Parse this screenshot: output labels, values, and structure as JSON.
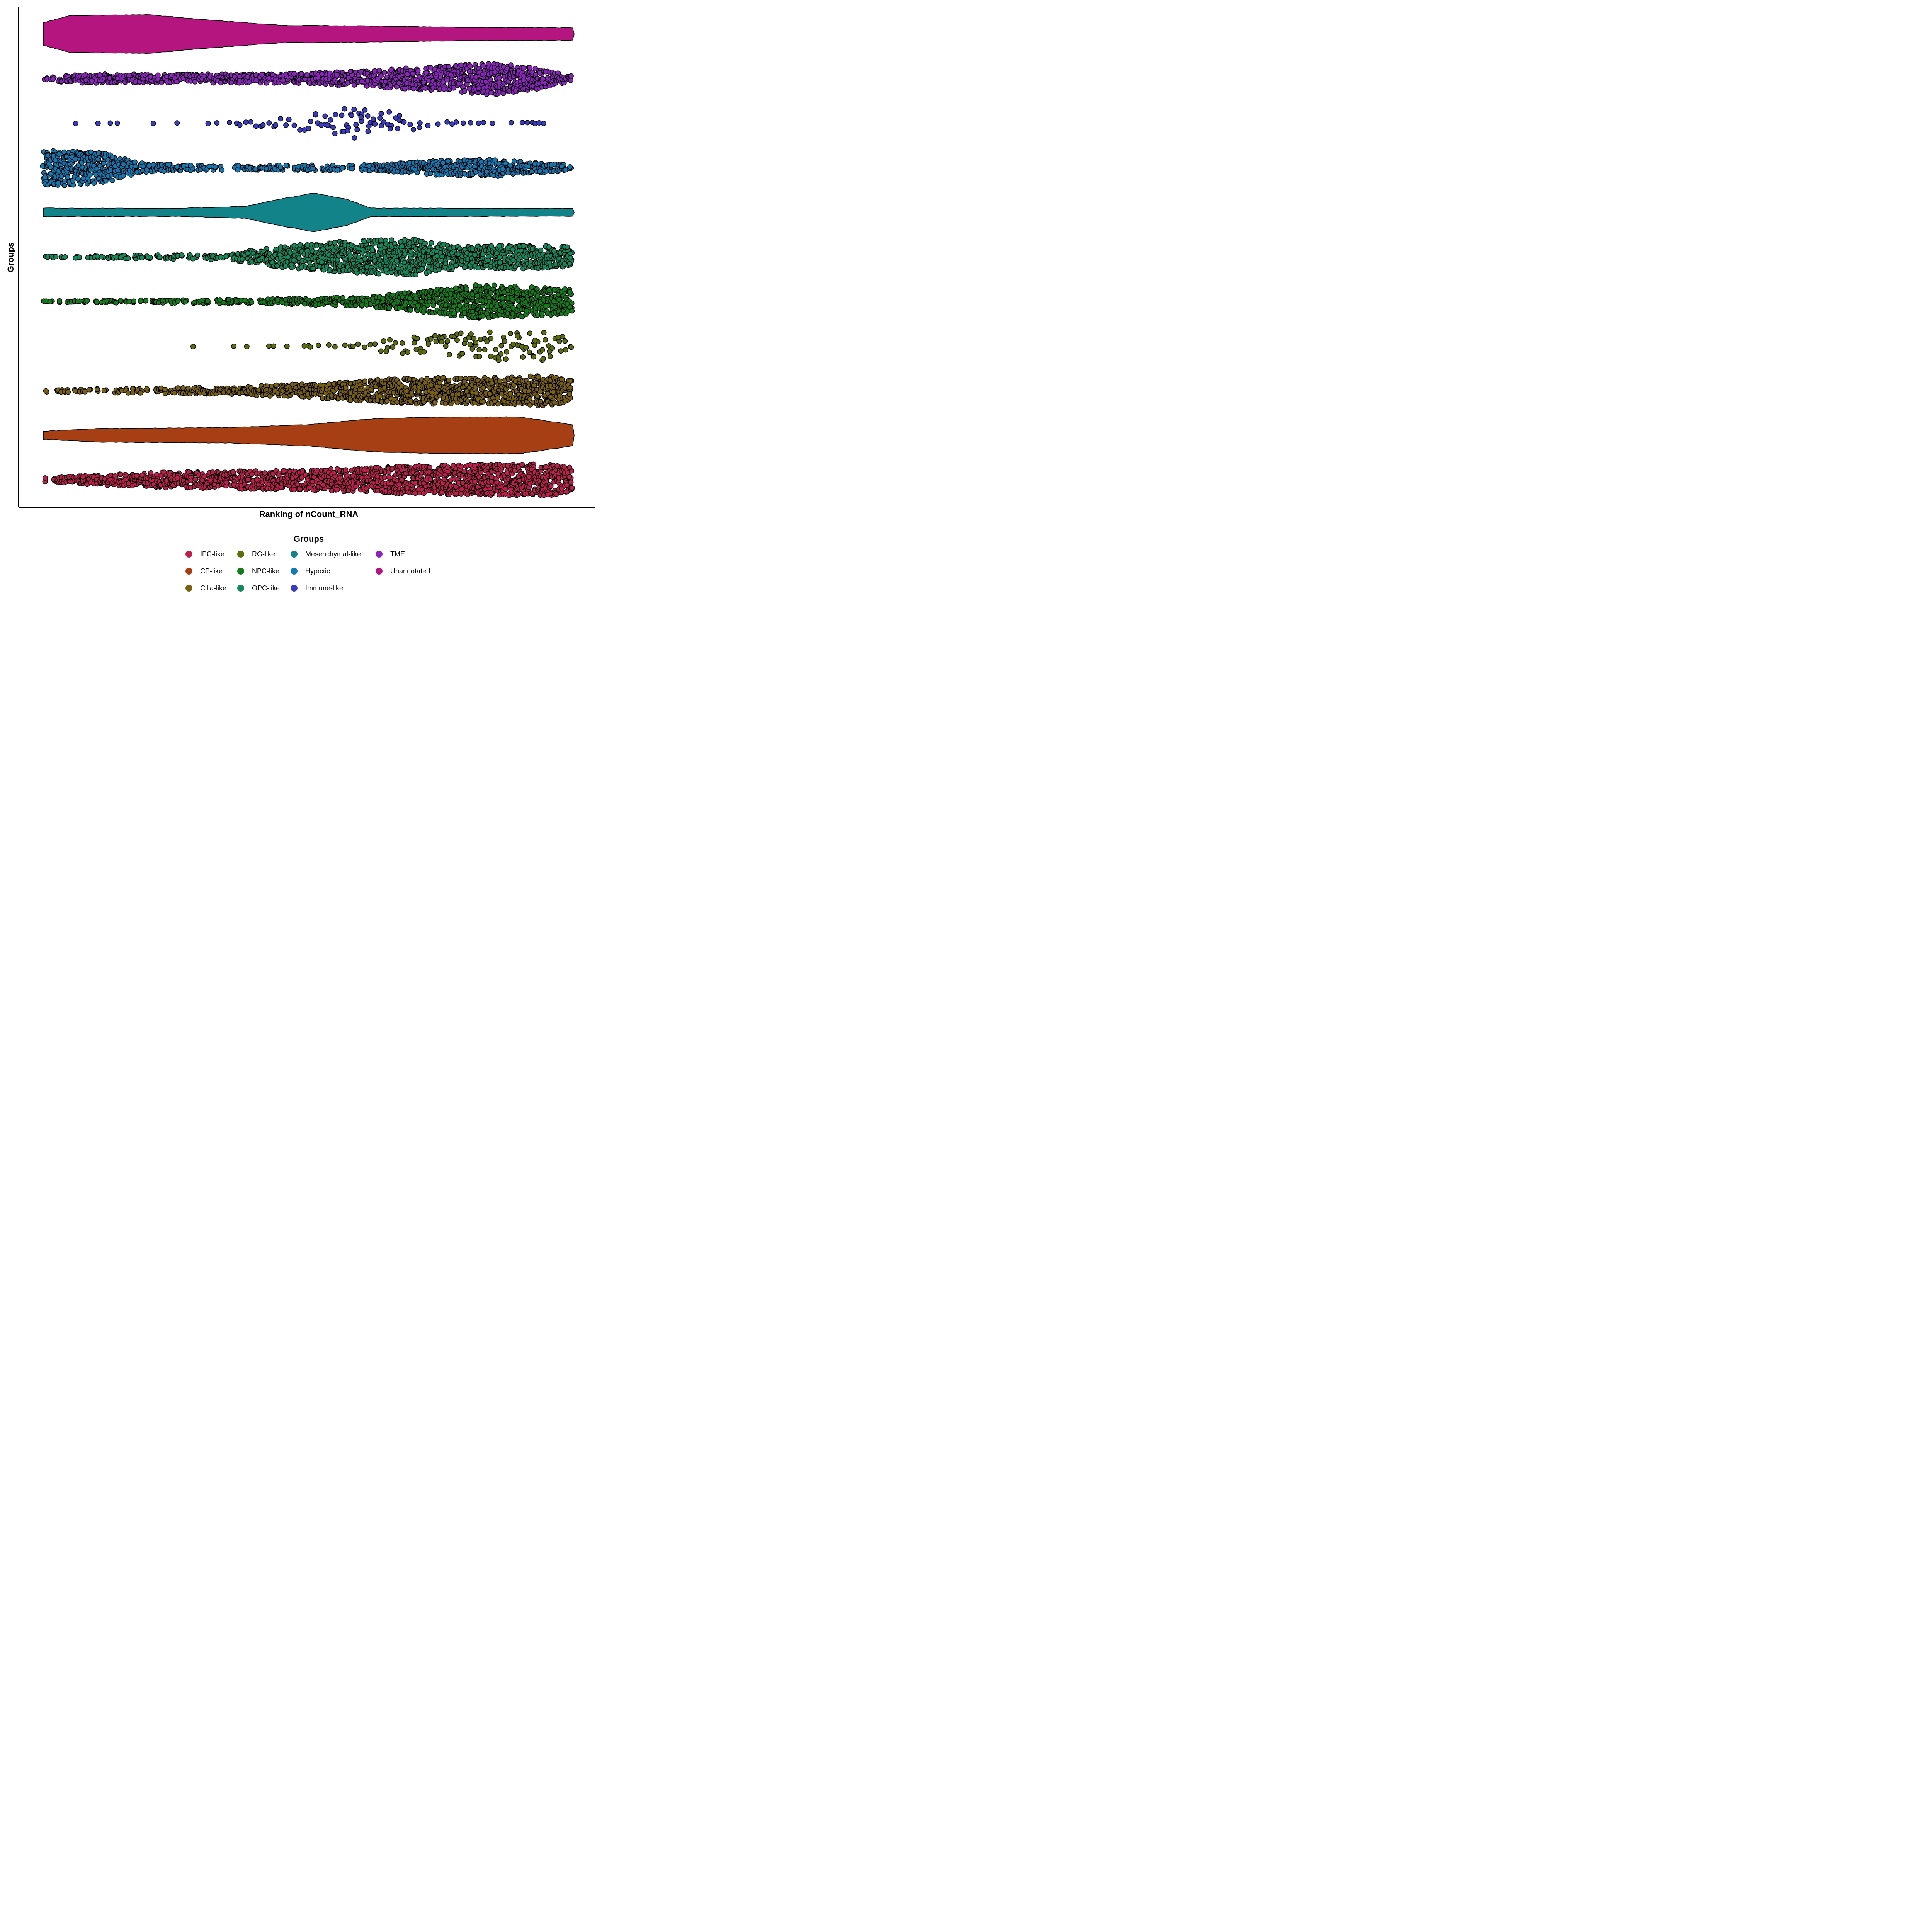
{
  "chart_data": {
    "type": "beeswarm",
    "xlabel": "Ranking of nCount_RNA",
    "ylabel": "Groups",
    "x_ticks_shown": false,
    "y_ticks_shown": false,
    "grid": false,
    "point_outline_color": "#000000",
    "legend": {
      "title": "Groups",
      "placement": "bottom",
      "columns": 4
    },
    "groups": [
      {
        "name": "Unannotated",
        "color": "#B5157F",
        "style": "dense",
        "profile": [
          [
            0,
            0.58
          ],
          [
            0.05,
            0.95
          ],
          [
            0.2,
            1.0
          ],
          [
            0.3,
            0.75
          ],
          [
            0.45,
            0.45
          ],
          [
            0.6,
            0.42
          ],
          [
            0.8,
            0.34
          ],
          [
            1.0,
            0.32
          ]
        ]
      },
      {
        "name": "TME",
        "color": "#8E24BF",
        "style": "points",
        "profile": [
          [
            0,
            0.1
          ],
          [
            0.05,
            0.3
          ],
          [
            0.25,
            0.28
          ],
          [
            0.45,
            0.3
          ],
          [
            0.6,
            0.45
          ],
          [
            0.75,
            0.72
          ],
          [
            0.85,
            0.9
          ],
          [
            0.93,
            0.6
          ],
          [
            1.0,
            0.2
          ]
        ]
      },
      {
        "name": "Immune-like",
        "color": "#3B3CC4",
        "style": "sparse",
        "profile": [
          [
            0,
            0
          ],
          [
            0.3,
            0.05
          ],
          [
            0.45,
            0.3
          ],
          [
            0.58,
            0.85
          ],
          [
            0.65,
            0.7
          ],
          [
            0.72,
            0.3
          ],
          [
            0.8,
            0.1
          ],
          [
            1.0,
            0.1
          ]
        ]
      },
      {
        "name": "Hypoxic",
        "color": "#1279B2",
        "style": "points",
        "profile": [
          [
            0,
            0.95
          ],
          [
            0.07,
            1.0
          ],
          [
            0.12,
            0.78
          ],
          [
            0.18,
            0.32
          ],
          [
            0.3,
            0.18
          ],
          [
            0.6,
            0.2
          ],
          [
            0.75,
            0.45
          ],
          [
            0.85,
            0.5
          ],
          [
            0.92,
            0.35
          ],
          [
            1.0,
            0.2
          ]
        ]
      },
      {
        "name": "Mesenchymal-like",
        "color": "#128388",
        "style": "dense",
        "profile": [
          [
            0,
            0.22
          ],
          [
            0.25,
            0.2
          ],
          [
            0.38,
            0.3
          ],
          [
            0.45,
            0.7
          ],
          [
            0.51,
            1.0
          ],
          [
            0.57,
            0.7
          ],
          [
            0.62,
            0.22
          ],
          [
            1.0,
            0.2
          ]
        ]
      },
      {
        "name": "OPC-like",
        "color": "#138A5E",
        "style": "points",
        "profile": [
          [
            0,
            0.1
          ],
          [
            0.35,
            0.2
          ],
          [
            0.42,
            0.55
          ],
          [
            0.58,
            0.9
          ],
          [
            0.7,
            1.0
          ],
          [
            0.8,
            0.6
          ],
          [
            0.9,
            0.7
          ],
          [
            1.0,
            0.6
          ]
        ]
      },
      {
        "name": "NPC-like",
        "color": "#127E1B",
        "style": "points",
        "profile": [
          [
            0,
            0.1
          ],
          [
            0.4,
            0.18
          ],
          [
            0.6,
            0.3
          ],
          [
            0.72,
            0.6
          ],
          [
            0.82,
            0.95
          ],
          [
            0.9,
            0.85
          ],
          [
            1.0,
            0.7
          ]
        ]
      },
      {
        "name": "RG-like",
        "color": "#5C6E0A",
        "style": "sparse",
        "profile": [
          [
            0,
            0
          ],
          [
            0.2,
            0.02
          ],
          [
            0.45,
            0.05
          ],
          [
            0.6,
            0.2
          ],
          [
            0.72,
            0.6
          ],
          [
            0.82,
            0.8
          ],
          [
            0.9,
            0.95
          ],
          [
            1.0,
            0.7
          ]
        ]
      },
      {
        "name": "Cilia-like",
        "color": "#7A6110",
        "style": "points",
        "profile": [
          [
            0,
            0.12
          ],
          [
            0.35,
            0.25
          ],
          [
            0.55,
            0.5
          ],
          [
            0.7,
            0.75
          ],
          [
            0.85,
            0.75
          ],
          [
            0.95,
            0.85
          ],
          [
            1.0,
            0.6
          ]
        ]
      },
      {
        "name": "CP-like",
        "color": "#A63F13",
        "style": "dense",
        "profile": [
          [
            0,
            0.2
          ],
          [
            0.1,
            0.35
          ],
          [
            0.35,
            0.4
          ],
          [
            0.5,
            0.55
          ],
          [
            0.62,
            0.85
          ],
          [
            0.75,
            0.95
          ],
          [
            0.9,
            0.95
          ],
          [
            1.0,
            0.55
          ]
        ]
      },
      {
        "name": "IPC-like",
        "color": "#BE1F4C",
        "style": "points",
        "profile": [
          [
            0,
            0.18
          ],
          [
            0.2,
            0.45
          ],
          [
            0.45,
            0.55
          ],
          [
            0.65,
            0.75
          ],
          [
            0.8,
            0.85
          ],
          [
            0.95,
            0.9
          ],
          [
            1.0,
            0.7
          ]
        ]
      }
    ],
    "legend_order": [
      "IPC-like",
      "CP-like",
      "Cilia-like",
      "RG-like",
      "NPC-like",
      "OPC-like",
      "Mesenchymal-like",
      "Hypoxic",
      "Immune-like",
      "TME",
      "Unannotated"
    ]
  }
}
